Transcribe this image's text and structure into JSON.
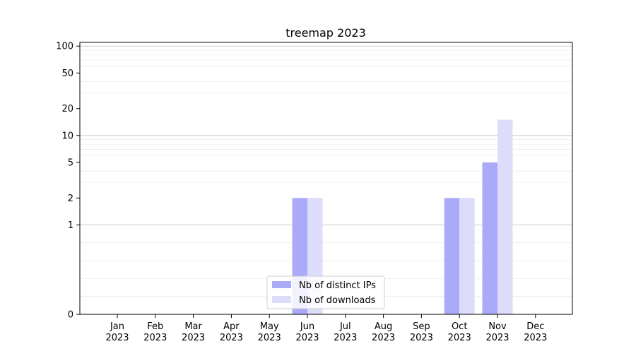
{
  "chart_data": {
    "type": "bar",
    "title": "treemap 2023",
    "xlabel": "",
    "ylabel": "",
    "y_scale": "symlog",
    "ylim": [
      0,
      110
    ],
    "y_ticks": [
      0,
      1,
      2,
      5,
      10,
      20,
      50,
      100
    ],
    "y_tick_labels": [
      "0",
      "1",
      "2",
      "5",
      "10",
      "20",
      "50",
      "100"
    ],
    "categories": [
      {
        "month": "Jan",
        "year": "2023"
      },
      {
        "month": "Feb",
        "year": "2023"
      },
      {
        "month": "Mar",
        "year": "2023"
      },
      {
        "month": "Apr",
        "year": "2023"
      },
      {
        "month": "May",
        "year": "2023"
      },
      {
        "month": "Jun",
        "year": "2023"
      },
      {
        "month": "Jul",
        "year": "2023"
      },
      {
        "month": "Aug",
        "year": "2023"
      },
      {
        "month": "Sep",
        "year": "2023"
      },
      {
        "month": "Oct",
        "year": "2023"
      },
      {
        "month": "Nov",
        "year": "2023"
      },
      {
        "month": "Dec",
        "year": "2023"
      }
    ],
    "series": [
      {
        "name": "Nb of distinct IPs",
        "color": "#aaaaf8",
        "values": [
          0,
          0,
          0,
          0,
          0,
          2,
          0,
          0,
          0,
          2,
          5,
          0
        ]
      },
      {
        "name": "Nb of downloads",
        "color": "#ddddfb",
        "values": [
          0,
          0,
          0,
          0,
          0,
          2,
          0,
          0,
          0,
          2,
          15,
          0
        ]
      }
    ],
    "grid": true,
    "legend_position": "bottom-center"
  }
}
